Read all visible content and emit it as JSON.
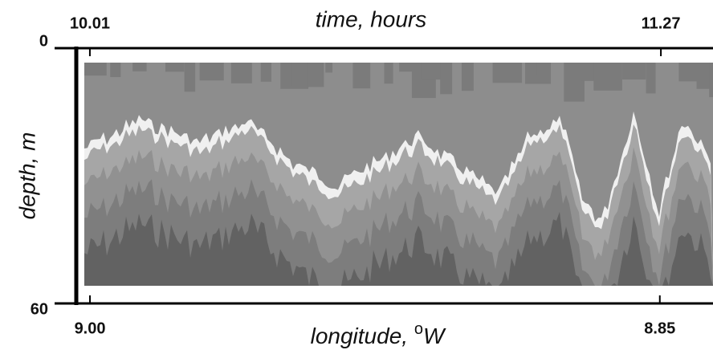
{
  "chart_data": {
    "type": "section",
    "x2label": "time, hours",
    "x2lim": [
      9.98,
      11.385
    ],
    "x2ticks": [
      10.01,
      11.27
    ],
    "xlabel": {
      "text": "longitude, ",
      "superscript": "o",
      "unit": "W"
    },
    "xlim": [
      9.0036,
      8.836
    ],
    "xticks": [
      {
        "value": 9,
        "label": "9.00"
      },
      8.85
    ],
    "ylabel": "depth, m",
    "ylim": [
      60,
      0
    ],
    "yticks": [
      0,
      60
    ]
  }
}
